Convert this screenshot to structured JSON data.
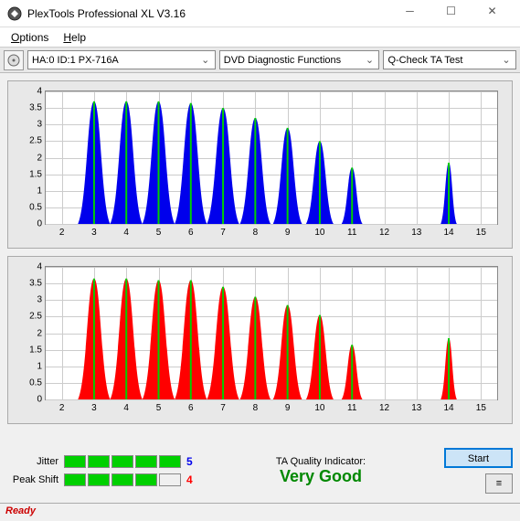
{
  "window": {
    "title": "PlexTools Professional XL V3.16"
  },
  "menu": {
    "options": "Options",
    "help": "Help"
  },
  "toolbar": {
    "drive_select": "HA:0 ID:1   PX-716A",
    "function_select": "DVD Diagnostic Functions",
    "test_select": "Q-Check TA Test"
  },
  "charts": {
    "ylim": [
      0,
      4
    ],
    "yticks": [
      0,
      0.5,
      1,
      1.5,
      2,
      2.5,
      3,
      3.5,
      4
    ],
    "xlim": [
      1.5,
      15.5
    ],
    "xticks": [
      2,
      3,
      4,
      5,
      6,
      7,
      8,
      9,
      10,
      11,
      12,
      13,
      14,
      15
    ],
    "background": "#ffffff",
    "grid_color": "#cccccc",
    "marker_color": "#00d000",
    "top": {
      "fill": "#0000ec",
      "peaks": [
        {
          "x": 3,
          "h": 3.7,
          "w": 1.0
        },
        {
          "x": 4,
          "h": 3.7,
          "w": 1.0
        },
        {
          "x": 5,
          "h": 3.7,
          "w": 1.0
        },
        {
          "x": 6,
          "h": 3.65,
          "w": 1.0
        },
        {
          "x": 7,
          "h": 3.5,
          "w": 1.0
        },
        {
          "x": 8,
          "h": 3.2,
          "w": 0.95
        },
        {
          "x": 9,
          "h": 2.9,
          "w": 0.9
        },
        {
          "x": 10,
          "h": 2.5,
          "w": 0.85
        },
        {
          "x": 11,
          "h": 1.7,
          "w": 0.65
        },
        {
          "x": 14,
          "h": 1.85,
          "w": 0.5
        }
      ]
    },
    "bottom": {
      "fill": "#ff0000",
      "peaks": [
        {
          "x": 3,
          "h": 3.65,
          "w": 1.0
        },
        {
          "x": 4,
          "h": 3.65,
          "w": 1.0
        },
        {
          "x": 5,
          "h": 3.6,
          "w": 1.0
        },
        {
          "x": 6,
          "h": 3.6,
          "w": 1.0
        },
        {
          "x": 7,
          "h": 3.4,
          "w": 1.0
        },
        {
          "x": 8,
          "h": 3.1,
          "w": 0.95
        },
        {
          "x": 9,
          "h": 2.85,
          "w": 0.9
        },
        {
          "x": 10,
          "h": 2.55,
          "w": 0.85
        },
        {
          "x": 11,
          "h": 1.65,
          "w": 0.65
        },
        {
          "x": 14,
          "h": 1.85,
          "w": 0.5
        }
      ]
    }
  },
  "metrics": {
    "jitter": {
      "label": "Jitter",
      "value": "5",
      "filled": 5,
      "total": 5,
      "color": "#0000ec"
    },
    "peakshift": {
      "label": "Peak Shift",
      "value": "4",
      "filled": 4,
      "total": 5,
      "color": "#ff0000"
    }
  },
  "quality": {
    "label": "TA Quality Indicator:",
    "value": "Very Good",
    "color": "#008800"
  },
  "buttons": {
    "start": "Start",
    "menu": "≡"
  },
  "status": {
    "text": "Ready"
  }
}
